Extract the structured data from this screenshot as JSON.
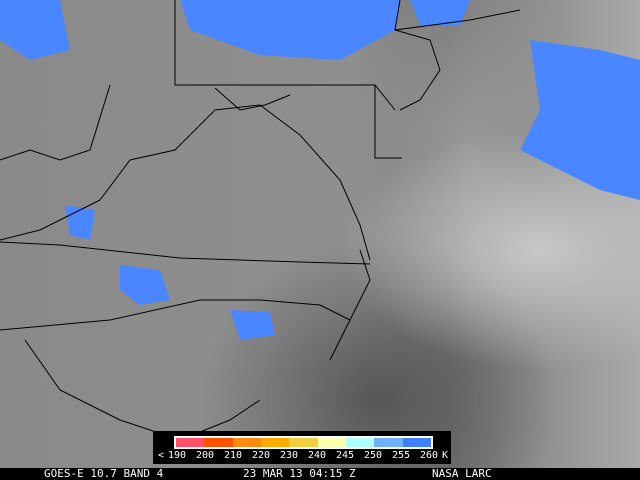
{
  "footer": {
    "satellite": "GOES-E 10.7 BAND 4",
    "datetime": "23 MAR 13 04:15 Z",
    "credit": "NASA LARC"
  },
  "legend": {
    "colors": [
      "#ff5068",
      "#ff5000",
      "#ff8a10",
      "#ffaa00",
      "#f0d040",
      "#ffffb0",
      "#b0ffff",
      "#70b0ff",
      "#4080ff"
    ],
    "less_than": "<",
    "ticks": [
      "190",
      "200",
      "210",
      "220",
      "230",
      "240",
      "245",
      "250",
      "255",
      "260"
    ],
    "unit": "K"
  },
  "cloud_color": "#4a86ff"
}
